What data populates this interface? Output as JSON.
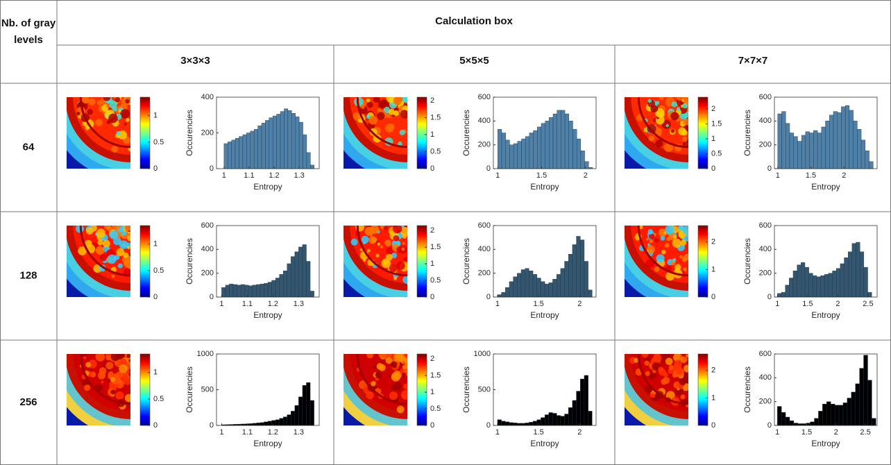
{
  "table": {
    "header": {
      "row_label": "Nb. of gray levels",
      "group_label": "Calculation box",
      "columns": [
        "3×3×3",
        "5×5×5",
        "7×7×7"
      ]
    },
    "rows": [
      {
        "label": "64",
        "cells": [
          {
            "colorbar": {
              "lim": [
                0,
                1.35
              ],
              "ticks": [
                0,
                0.5,
                1
              ]
            },
            "histogram": {
              "type": "histogram",
              "x_label": "Entropy",
              "y_label": "Occurencies",
              "color": "#4f81a8",
              "bins": [
                1,
                1.015,
                1.03,
                1.045,
                1.06,
                1.075,
                1.09,
                1.105,
                1.12,
                1.135,
                1.15,
                1.165,
                1.18,
                1.195,
                1.21,
                1.225,
                1.24,
                1.255,
                1.27,
                1.285,
                1.3,
                1.315,
                1.33,
                1.345,
                1.36
              ],
              "values": [
                140,
                150,
                160,
                170,
                180,
                190,
                200,
                210,
                220,
                240,
                255,
                270,
                285,
                295,
                305,
                320,
                335,
                325,
                310,
                290,
                260,
                190,
                90,
                20
              ],
              "xlim": [
                0.97,
                1.38
              ],
              "xticks": [
                1,
                1.1,
                1.2,
                1.3
              ],
              "ylim": [
                0,
                400
              ],
              "yticks": [
                0,
                200,
                400
              ]
            }
          },
          {
            "colorbar": {
              "lim": [
                0,
                2.1
              ],
              "ticks": [
                0,
                0.5,
                1,
                1.5,
                2
              ]
            },
            "histogram": {
              "type": "histogram",
              "x_label": "Entropy",
              "y_label": "Occurencies",
              "color": "#4f81a8",
              "bins": [
                1,
                1.045,
                1.09,
                1.135,
                1.18,
                1.225,
                1.27,
                1.315,
                1.36,
                1.405,
                1.45,
                1.495,
                1.54,
                1.585,
                1.63,
                1.675,
                1.72,
                1.765,
                1.81,
                1.855,
                1.9,
                1.945,
                1.99,
                2.035,
                2.08
              ],
              "values": [
                330,
                300,
                240,
                200,
                210,
                230,
                250,
                270,
                300,
                320,
                350,
                380,
                400,
                430,
                460,
                490,
                490,
                460,
                400,
                330,
                250,
                150,
                60,
                10
              ],
              "xlim": [
                0.95,
                2.12
              ],
              "xticks": [
                1,
                1.5,
                2
              ],
              "ylim": [
                0,
                600
              ],
              "yticks": [
                0,
                200,
                400,
                600
              ]
            }
          },
          {
            "colorbar": {
              "lim": [
                0,
                2.4
              ],
              "ticks": [
                0,
                0.5,
                1,
                1.5,
                2
              ]
            },
            "histogram": {
              "type": "histogram",
              "x_label": "Entropy",
              "y_label": "Occurencies",
              "color": "#4f81a8",
              "bins": [
                1,
                1.06,
                1.12,
                1.18,
                1.24,
                1.3,
                1.36,
                1.42,
                1.48,
                1.54,
                1.6,
                1.66,
                1.72,
                1.78,
                1.84,
                1.9,
                1.96,
                2.02,
                2.08,
                2.14,
                2.2,
                2.26,
                2.32,
                2.38,
                2.44
              ],
              "values": [
                460,
                480,
                380,
                300,
                270,
                230,
                280,
                310,
                300,
                320,
                300,
                350,
                400,
                450,
                480,
                470,
                520,
                530,
                490,
                400,
                330,
                240,
                150,
                60
              ],
              "xlim": [
                0.95,
                2.5
              ],
              "xticks": [
                1,
                1.5,
                2
              ],
              "ylim": [
                0,
                600
              ],
              "yticks": [
                0,
                200,
                400,
                600
              ]
            }
          }
        ]
      },
      {
        "label": "128",
        "cells": [
          {
            "colorbar": {
              "lim": [
                0,
                1.35
              ],
              "ticks": [
                0,
                0.5,
                1
              ]
            },
            "histogram": {
              "type": "histogram",
              "x_label": "Entropy",
              "y_label": "Occurencies",
              "color": "#34566f",
              "bins": [
                1,
                1.015,
                1.03,
                1.045,
                1.06,
                1.075,
                1.09,
                1.105,
                1.12,
                1.135,
                1.15,
                1.165,
                1.18,
                1.195,
                1.21,
                1.225,
                1.24,
                1.255,
                1.27,
                1.285,
                1.3,
                1.315,
                1.33,
                1.345,
                1.36
              ],
              "values": [
                80,
                100,
                110,
                105,
                100,
                105,
                100,
                95,
                100,
                105,
                110,
                115,
                125,
                140,
                160,
                190,
                220,
                280,
                340,
                380,
                420,
                440,
                300,
                50
              ],
              "xlim": [
                0.98,
                1.38
              ],
              "xticks": [
                1,
                1.1,
                1.2,
                1.3
              ],
              "ylim": [
                0,
                600
              ],
              "yticks": [
                0,
                200,
                400,
                600
              ]
            }
          },
          {
            "colorbar": {
              "lim": [
                0,
                2.15
              ],
              "ticks": [
                0,
                0.5,
                1,
                1.5,
                2
              ]
            },
            "histogram": {
              "type": "histogram",
              "x_label": "Entropy",
              "y_label": "Occurencies",
              "color": "#34566f",
              "bins": [
                1,
                1.048,
                1.096,
                1.144,
                1.192,
                1.24,
                1.288,
                1.336,
                1.384,
                1.432,
                1.48,
                1.528,
                1.576,
                1.624,
                1.672,
                1.72,
                1.768,
                1.816,
                1.864,
                1.912,
                1.96,
                2.008,
                2.056,
                2.104,
                2.152
              ],
              "values": [
                20,
                40,
                80,
                130,
                170,
                200,
                230,
                240,
                220,
                190,
                160,
                130,
                110,
                120,
                150,
                190,
                240,
                300,
                360,
                440,
                510,
                480,
                300,
                60
              ],
              "xlim": [
                0.95,
                2.2
              ],
              "xticks": [
                1,
                1.5,
                2
              ],
              "ylim": [
                0,
                600
              ],
              "yticks": [
                0,
                200,
                400,
                600
              ]
            }
          },
          {
            "colorbar": {
              "lim": [
                0,
                2.6
              ],
              "ticks": [
                0,
                1,
                2
              ]
            },
            "histogram": {
              "type": "histogram",
              "x_label": "Entropy",
              "y_label": "Occurencies",
              "color": "#34566f",
              "bins": [
                1,
                1.065,
                1.13,
                1.195,
                1.26,
                1.325,
                1.39,
                1.455,
                1.52,
                1.585,
                1.65,
                1.715,
                1.78,
                1.845,
                1.91,
                1.975,
                2.04,
                2.105,
                2.17,
                2.235,
                2.3,
                2.365,
                2.43,
                2.495,
                2.56
              ],
              "values": [
                30,
                40,
                100,
                160,
                220,
                270,
                290,
                250,
                200,
                180,
                170,
                180,
                190,
                200,
                220,
                240,
                280,
                330,
                380,
                450,
                460,
                380,
                250,
                40
              ],
              "xlim": [
                0.95,
                2.65
              ],
              "xticks": [
                1,
                1.5,
                2,
                2.5
              ],
              "ylim": [
                0,
                600
              ],
              "yticks": [
                0,
                200,
                400,
                600
              ]
            }
          }
        ]
      },
      {
        "label": "256",
        "cells": [
          {
            "colorbar": {
              "lim": [
                0,
                1.35
              ],
              "ticks": [
                0,
                0.5,
                1
              ]
            },
            "histogram": {
              "type": "histogram",
              "x_label": "Entropy",
              "y_label": "Occurencies",
              "color": "#000000",
              "bins": [
                1,
                1.015,
                1.03,
                1.045,
                1.06,
                1.075,
                1.09,
                1.105,
                1.12,
                1.135,
                1.15,
                1.165,
                1.18,
                1.195,
                1.21,
                1.225,
                1.24,
                1.255,
                1.27,
                1.285,
                1.3,
                1.315,
                1.33,
                1.345,
                1.36
              ],
              "values": [
                10,
                12,
                14,
                16,
                18,
                20,
                22,
                25,
                30,
                35,
                40,
                50,
                60,
                70,
                80,
                100,
                120,
                150,
                200,
                280,
                400,
                560,
                600,
                350
              ],
              "xlim": [
                0.98,
                1.38
              ],
              "xticks": [
                1,
                1.1,
                1.2,
                1.3
              ],
              "ylim": [
                0,
                1000
              ],
              "yticks": [
                0,
                500,
                1000
              ]
            }
          },
          {
            "colorbar": {
              "lim": [
                0,
                2.15
              ],
              "ticks": [
                0,
                0.5,
                1,
                1.5,
                2
              ]
            },
            "histogram": {
              "type": "histogram",
              "x_label": "Entropy",
              "y_label": "Occurencies",
              "color": "#000000",
              "bins": [
                1,
                1.048,
                1.096,
                1.144,
                1.192,
                1.24,
                1.288,
                1.336,
                1.384,
                1.432,
                1.48,
                1.528,
                1.576,
                1.624,
                1.672,
                1.72,
                1.768,
                1.816,
                1.864,
                1.912,
                1.96,
                2.008,
                2.056,
                2.104,
                2.152
              ],
              "values": [
                80,
                60,
                50,
                40,
                35,
                30,
                30,
                35,
                45,
                60,
                80,
                110,
                150,
                180,
                170,
                140,
                130,
                160,
                250,
                350,
                480,
                650,
                700,
                200
              ],
              "xlim": [
                0.95,
                2.2
              ],
              "xticks": [
                1,
                1.5,
                2
              ],
              "ylim": [
                0,
                1000
              ],
              "yticks": [
                0,
                500,
                1000
              ]
            }
          },
          {
            "colorbar": {
              "lim": [
                0,
                2.6
              ],
              "ticks": [
                0,
                1,
                2
              ]
            },
            "histogram": {
              "type": "histogram",
              "x_label": "Entropy",
              "y_label": "Occurencies",
              "color": "#000000",
              "bins": [
                1,
                1.07,
                1.14,
                1.21,
                1.28,
                1.35,
                1.42,
                1.49,
                1.56,
                1.63,
                1.7,
                1.77,
                1.84,
                1.91,
                1.98,
                2.05,
                2.12,
                2.19,
                2.26,
                2.33,
                2.4,
                2.47,
                2.54,
                2.61,
                2.68
              ],
              "values": [
                160,
                110,
                70,
                40,
                20,
                15,
                15,
                20,
                30,
                60,
                120,
                180,
                200,
                180,
                170,
                170,
                190,
                230,
                280,
                350,
                480,
                590,
                380,
                60
              ],
              "xlim": [
                0.95,
                2.7
              ],
              "xticks": [
                1,
                1.5,
                2,
                2.5
              ],
              "ylim": [
                0,
                600
              ],
              "yticks": [
                0,
                200,
                400,
                600
              ]
            }
          }
        ]
      }
    ]
  }
}
